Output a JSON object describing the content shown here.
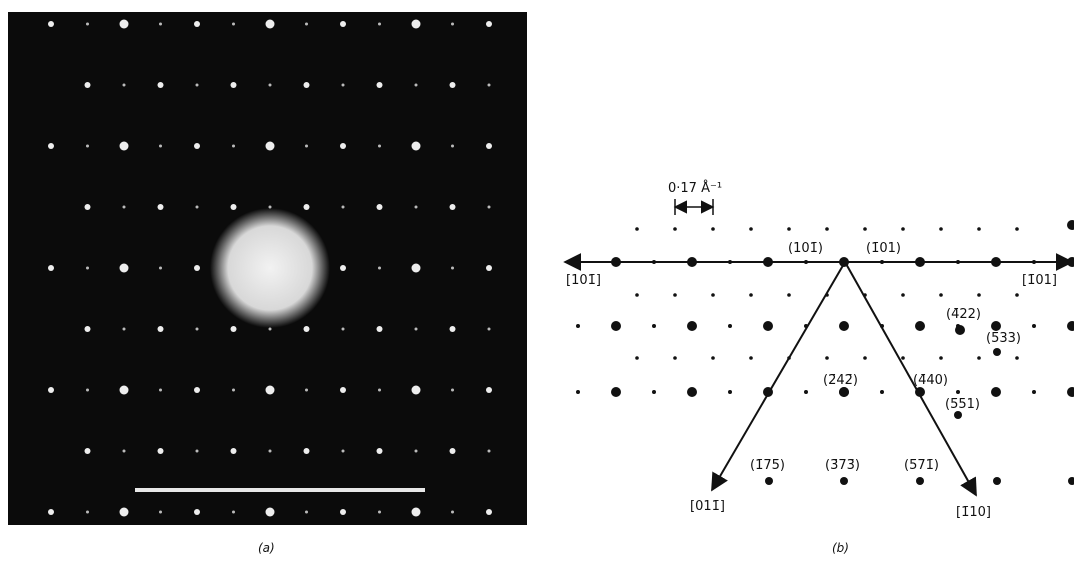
{
  "panel_a": {
    "caption": "(a)"
  },
  "panel_b": {
    "caption": "(b)",
    "scale": "0·17 Å⁻¹",
    "labels": [
      "(101̄)",
      "(1̄01)",
      "[101̄]",
      "[1̄01]",
      "(4̄22)",
      "(5̄33)",
      "(2̄42̄)",
      "(4̄40)",
      "(5̄51)",
      "(1̄75̄)",
      "(3̄73̄)",
      "(5̄71̄)",
      "[011̄]",
      "[1̄10]"
    ]
  }
}
